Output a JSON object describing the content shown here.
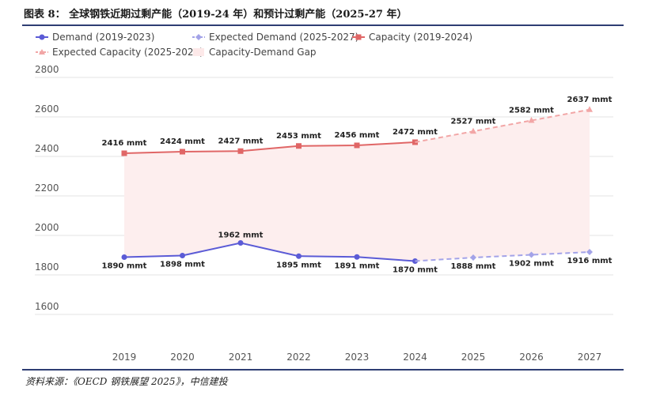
{
  "figure_title": "图表 8：  全球钢铁近期过剩产能（2019-24 年）和预计过剩产能（2025-27 年）",
  "source": "资料来源：《OECD 钢铁展望 2025》，中信建投",
  "legend": [
    {
      "label": "Demand (2019-2023)",
      "color": "#5b5bd6",
      "dash": false,
      "marker": "circle"
    },
    {
      "label": "Expected Demand (2025-2027)",
      "color": "#a3a3e8",
      "dash": true,
      "marker": "diamond"
    },
    {
      "label": "Capacity (2019-2024)",
      "color": "#e06666",
      "dash": false,
      "marker": "square"
    },
    {
      "label": "Expected Capacity (2025-2027)",
      "color": "#f2a6a6",
      "dash": true,
      "marker": "triangle"
    },
    {
      "label": "Capacity-Demand Gap",
      "color": "#fde9e9",
      "dash": false,
      "marker": "gap"
    }
  ],
  "chart_data": {
    "type": "line",
    "x": [
      "2019",
      "2020",
      "2021",
      "2022",
      "2023",
      "2024",
      "2025",
      "2026",
      "2027"
    ],
    "y_ticks": [
      "2800",
      "2600",
      "2400",
      "2200",
      "2000",
      "1800",
      "1600"
    ],
    "ylim": [
      1500,
      2800
    ],
    "grid": true,
    "legend_position": "top-left",
    "series": [
      {
        "name": "Demand (2019-2023)",
        "x": [
          "2019",
          "2020",
          "2021",
          "2022",
          "2023",
          "2024"
        ],
        "values": [
          1890,
          1898,
          1962,
          1895,
          1891,
          1870
        ],
        "color": "#5b5bd6"
      },
      {
        "name": "Expected Demand (2025-2027)",
        "x": [
          "2024",
          "2025",
          "2026",
          "2027"
        ],
        "values": [
          1870,
          1888,
          1902,
          1916
        ],
        "color": "#a3a3e8",
        "dashed": true
      },
      {
        "name": "Capacity (2019-2024)",
        "x": [
          "2019",
          "2020",
          "2021",
          "2022",
          "2023",
          "2024"
        ],
        "values": [
          2416,
          2424,
          2427,
          2453,
          2456,
          2472
        ],
        "color": "#e06666"
      },
      {
        "name": "Expected Capacity (2025-2027)",
        "x": [
          "2024",
          "2025",
          "2026",
          "2027"
        ],
        "values": [
          2472,
          2527,
          2582,
          2637
        ],
        "color": "#f2a6a6",
        "dashed": true
      }
    ],
    "capacity_labels": [
      {
        "x": "2019",
        "text": "2416 mmt"
      },
      {
        "x": "2020",
        "text": "2424 mmt"
      },
      {
        "x": "2021",
        "text": "2427 mmt"
      },
      {
        "x": "2022",
        "text": "2453 mmt"
      },
      {
        "x": "2023",
        "text": "2456 mmt"
      },
      {
        "x": "2024",
        "text": "2472 mmt"
      },
      {
        "x": "2025",
        "text": "2527 mmt"
      },
      {
        "x": "2026",
        "text": "2582 mmt"
      },
      {
        "x": "2027",
        "text": "2637 mmt"
      }
    ],
    "demand_labels": [
      {
        "x": "2019",
        "text": "1890 mmt"
      },
      {
        "x": "2020",
        "text": "1898 mmt"
      },
      {
        "x": "2021",
        "text": "1962 mmt"
      },
      {
        "x": "2022",
        "text": "1895 mmt"
      },
      {
        "x": "2023",
        "text": "1891 mmt"
      },
      {
        "x": "2024",
        "text": "1870 mmt"
      },
      {
        "x": "2025",
        "text": "1888 mmt"
      },
      {
        "x": "2026",
        "text": "1902 mmt"
      },
      {
        "x": "2027",
        "text": "1916 mmt"
      }
    ]
  }
}
